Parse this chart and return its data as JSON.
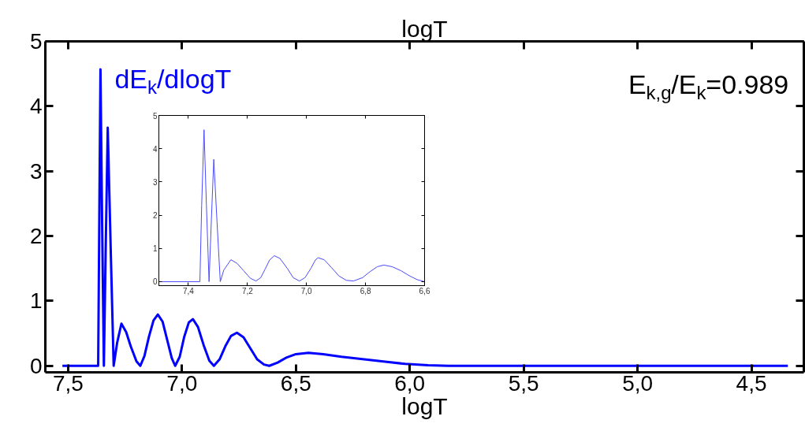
{
  "chart_data": [
    {
      "type": "line",
      "xlabel": "logT",
      "x2label": "logT",
      "xlim": [
        7.6,
        4.27
      ],
      "xticks": [
        {
          "value": 7.5,
          "label": "7,5"
        },
        {
          "value": 7.0,
          "label": "7,0"
        },
        {
          "value": 6.5,
          "label": "6,5"
        },
        {
          "value": 6.0,
          "label": "6,0"
        },
        {
          "value": 5.5,
          "label": "5,5"
        },
        {
          "value": 5.0,
          "label": "5,0"
        },
        {
          "value": 4.5,
          "label": "4,5"
        }
      ],
      "ylim": [
        -0.1,
        5
      ],
      "yticks": [
        0,
        1,
        2,
        3,
        4,
        5
      ],
      "grid": false,
      "marker": "none",
      "line_style": "solid",
      "series": [
        {
          "name": "dE$_{k}$/dlogT",
          "color": "#0000ff",
          "x": [
            7.525,
            7.368,
            7.363,
            7.358,
            7.351,
            7.343,
            7.335,
            7.326,
            7.313,
            7.3,
            7.285,
            7.266,
            7.245,
            7.225,
            7.2,
            7.183,
            7.165,
            7.145,
            7.125,
            7.106,
            7.085,
            7.065,
            7.045,
            7.03,
            7.01,
            6.99,
            6.97,
            6.952,
            6.93,
            6.905,
            6.88,
            6.86,
            6.835,
            6.81,
            6.785,
            6.759,
            6.73,
            6.7,
            6.67,
            6.64,
            6.617,
            6.58,
            6.54,
            6.5,
            6.445,
            6.38,
            6.3,
            6.2,
            6.1,
            6.02,
            5.92,
            5.83,
            4.34
          ],
          "values": [
            0,
            0,
            2.3,
            4.57,
            2.3,
            0,
            1.8,
            3.67,
            1.8,
            0,
            0.35,
            0.65,
            0.52,
            0.3,
            0.07,
            0,
            0.15,
            0.45,
            0.7,
            0.79,
            0.68,
            0.4,
            0.12,
            0,
            0.14,
            0.45,
            0.67,
            0.72,
            0.6,
            0.32,
            0.08,
            0,
            0.1,
            0.3,
            0.46,
            0.51,
            0.44,
            0.27,
            0.1,
            0.02,
            0,
            0.05,
            0.13,
            0.18,
            0.2,
            0.18,
            0.14,
            0.1,
            0.06,
            0.03,
            0.01,
            0,
            0
          ]
        }
      ],
      "annotations": [
        "E$_{k,g}$/E$_{k}$=0.989"
      ]
    },
    {
      "type": "line",
      "xlim": [
        7.5,
        6.6
      ],
      "xticks": [
        {
          "value": 7.4,
          "label": "7,4"
        },
        {
          "value": 7.2,
          "label": "7,2"
        },
        {
          "value": 7.0,
          "label": "7,0"
        },
        {
          "value": 6.8,
          "label": "6,8"
        },
        {
          "value": 6.6,
          "label": "6,6"
        }
      ],
      "ylim": [
        -0.12,
        5
      ],
      "yticks": [
        0,
        1,
        2,
        3,
        4,
        5
      ],
      "grid": false,
      "marker": "none",
      "line_style": "solid",
      "series": [
        {
          "color": "#4a4aff",
          "x": [
            7.5,
            7.361,
            7.355,
            7.347,
            7.339,
            7.33,
            7.322,
            7.314,
            7.303,
            7.292,
            7.28,
            7.256,
            7.235,
            7.213,
            7.19,
            7.171,
            7.155,
            7.14,
            7.125,
            7.109,
            7.09,
            7.065,
            7.045,
            7.024,
            7.005,
            6.985,
            6.97,
            6.961,
            6.94,
            6.915,
            6.89,
            6.865,
            6.841,
            6.81,
            6.785,
            6.76,
            6.738,
            6.71,
            6.68,
            6.65,
            6.625,
            6.6
          ],
          "values": [
            0,
            0,
            2.3,
            4.57,
            2.3,
            0,
            1.9,
            3.68,
            1.8,
            0,
            0.35,
            0.66,
            0.55,
            0.33,
            0.1,
            0.02,
            0.12,
            0.38,
            0.65,
            0.78,
            0.7,
            0.4,
            0.12,
            0.02,
            0.12,
            0.4,
            0.65,
            0.72,
            0.66,
            0.42,
            0.17,
            0.04,
            0.02,
            0.12,
            0.3,
            0.45,
            0.5,
            0.45,
            0.33,
            0.17,
            0.06,
            0
          ]
        }
      ]
    }
  ]
}
